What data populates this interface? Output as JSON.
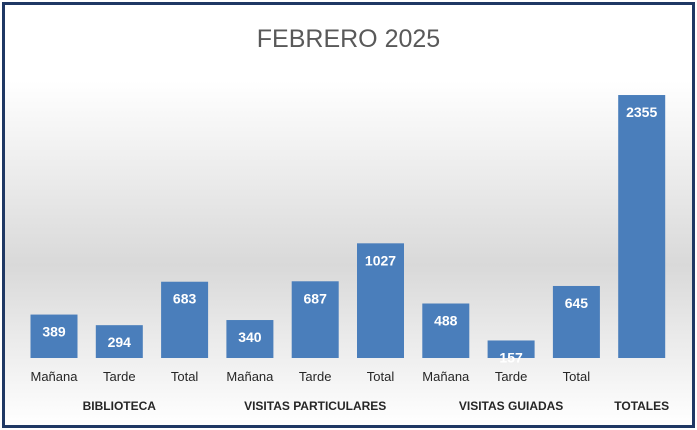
{
  "chart_data": {
    "type": "bar",
    "title": "FEBRERO 2025",
    "categories": [
      "Mañana",
      "Tarde",
      "Total",
      "Mañana",
      "Tarde",
      "Total",
      "Mañana",
      "Tarde",
      "Total",
      ""
    ],
    "values": [
      389,
      294,
      683,
      340,
      687,
      1027,
      488,
      157,
      645,
      2355
    ],
    "groups": [
      {
        "label": "BIBLIOTECA",
        "span": [
          0,
          2
        ]
      },
      {
        "label": "VISITAS PARTICULARES",
        "span": [
          3,
          5
        ]
      },
      {
        "label": "VISITAS GUIADAS",
        "span": [
          6,
          8
        ]
      },
      {
        "label": "TOTALES",
        "span": [
          9,
          9
        ]
      }
    ],
    "ylim": [
      0,
      2400
    ],
    "grid": false,
    "legend": "none",
    "bar_color": "#4a7ebb"
  }
}
